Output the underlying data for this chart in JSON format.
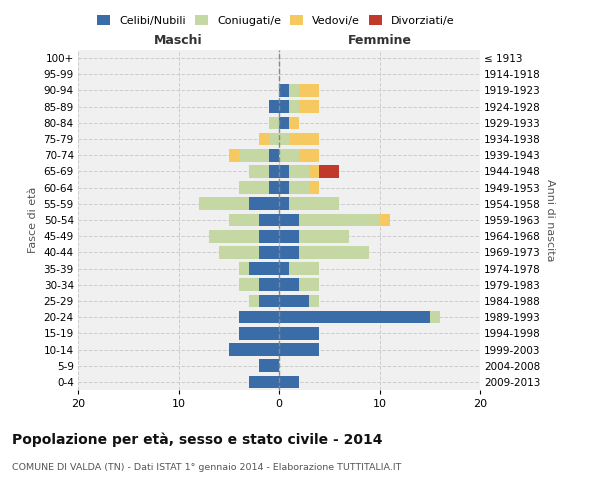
{
  "age_groups": [
    "0-4",
    "5-9",
    "10-14",
    "15-19",
    "20-24",
    "25-29",
    "30-34",
    "35-39",
    "40-44",
    "45-49",
    "50-54",
    "55-59",
    "60-64",
    "65-69",
    "70-74",
    "75-79",
    "80-84",
    "85-89",
    "90-94",
    "95-99",
    "100+"
  ],
  "birth_years": [
    "2009-2013",
    "2004-2008",
    "1999-2003",
    "1994-1998",
    "1989-1993",
    "1984-1988",
    "1979-1983",
    "1974-1978",
    "1969-1973",
    "1964-1968",
    "1959-1963",
    "1954-1958",
    "1949-1953",
    "1944-1948",
    "1939-1943",
    "1934-1938",
    "1929-1933",
    "1924-1928",
    "1919-1923",
    "1914-1918",
    "≤ 1913"
  ],
  "maschi": {
    "celibi": [
      3,
      2,
      5,
      4,
      4,
      2,
      2,
      3,
      2,
      2,
      2,
      3,
      1,
      1,
      1,
      0,
      0,
      1,
      0,
      0,
      0
    ],
    "coniugati": [
      0,
      0,
      0,
      0,
      0,
      1,
      2,
      1,
      4,
      5,
      3,
      5,
      3,
      2,
      3,
      1,
      1,
      0,
      0,
      0,
      0
    ],
    "vedovi": [
      0,
      0,
      0,
      0,
      0,
      0,
      0,
      0,
      0,
      0,
      0,
      0,
      0,
      0,
      1,
      1,
      0,
      0,
      0,
      0,
      0
    ],
    "divorziati": [
      0,
      0,
      0,
      0,
      0,
      0,
      0,
      0,
      0,
      0,
      0,
      0,
      0,
      0,
      0,
      0,
      0,
      0,
      0,
      0,
      0
    ]
  },
  "femmine": {
    "nubili": [
      2,
      0,
      4,
      4,
      15,
      3,
      2,
      1,
      2,
      2,
      2,
      1,
      1,
      1,
      0,
      0,
      1,
      1,
      1,
      0,
      0
    ],
    "coniugate": [
      0,
      0,
      0,
      0,
      1,
      1,
      2,
      3,
      7,
      5,
      8,
      5,
      2,
      2,
      2,
      1,
      0,
      1,
      1,
      0,
      0
    ],
    "vedove": [
      0,
      0,
      0,
      0,
      0,
      0,
      0,
      0,
      0,
      0,
      1,
      0,
      1,
      1,
      2,
      3,
      1,
      2,
      2,
      0,
      0
    ],
    "divorziate": [
      0,
      0,
      0,
      0,
      0,
      0,
      0,
      0,
      0,
      0,
      0,
      0,
      0,
      2,
      0,
      0,
      0,
      0,
      0,
      0,
      0
    ]
  },
  "colors": {
    "celibi_nubili": "#3a6ca8",
    "coniugati": "#c5d8a4",
    "vedovi": "#f5c860",
    "divorziati": "#c0392b"
  },
  "title": "Popolazione per età, sesso e stato civile - 2014",
  "subtitle": "COMUNE DI VALDA (TN) - Dati ISTAT 1° gennaio 2014 - Elaborazione TUTTITALIA.IT",
  "ylabel_left": "Fasce di età",
  "ylabel_right": "Anni di nascita",
  "xlim": [
    -20,
    20
  ],
  "xticks": [
    -20,
    -10,
    0,
    10,
    20
  ],
  "xticklabels": [
    "20",
    "10",
    "0",
    "10",
    "20"
  ],
  "bg_color": "#ffffff",
  "grid_color": "#cccccc",
  "maschi_label": "Maschi",
  "femmine_label": "Femmine",
  "legend_labels": [
    "Celibi/Nubili",
    "Coniugati/e",
    "Vedovi/e",
    "Divorziati/e"
  ]
}
